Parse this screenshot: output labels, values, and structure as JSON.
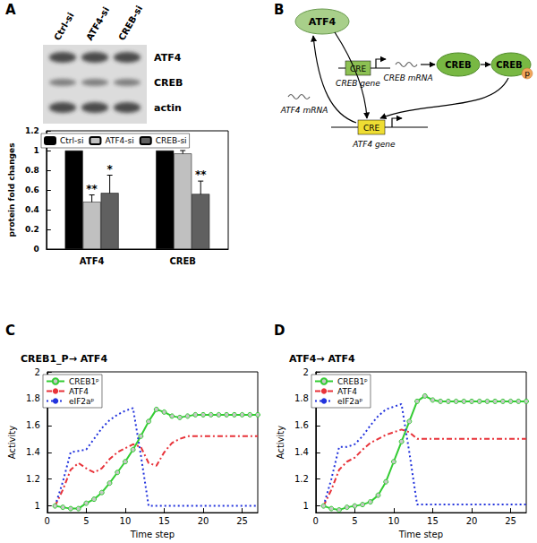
{
  "panel_labels": [
    "A",
    "B",
    "C",
    "D"
  ],
  "blot": {
    "lanes": [
      "Ctrl-si",
      "ATF4-si",
      "CREB-si"
    ],
    "rows": [
      "ATF4",
      "CREB",
      "actin"
    ]
  },
  "diagram": {
    "atf4_protein": "ATF4",
    "creb_gene": {
      "element": "CRE",
      "label": "CREB gene"
    },
    "creb_mrna": "CREB mRNA",
    "creb_protein": "CREB",
    "creb_phospho": {
      "label": "CREB",
      "mark": "p"
    },
    "atf4_gene": {
      "element": "CRE",
      "label": "ATF4 gene"
    },
    "atf4_mrna": "ATF4 mRNA"
  },
  "chart_data": [
    {
      "type": "bar",
      "categories": [
        "ATF4",
        "CREB"
      ],
      "ylabel": "protein fold changes",
      "ylim": [
        0,
        1.2
      ],
      "yticks": [
        0,
        0.2,
        0.4,
        0.6,
        0.8,
        1,
        1.2
      ],
      "grid": false,
      "legend": "upper left",
      "series": [
        {
          "name": "Ctrl-si",
          "color": "#000000",
          "values": [
            1,
            1
          ],
          "errors": [
            0,
            0
          ],
          "annotations": [
            null,
            null
          ]
        },
        {
          "name": "ATF4-si",
          "color": "#c0c0c0",
          "values": [
            0.48,
            0.97
          ],
          "errors": [
            0.07,
            0.03
          ],
          "annotations": [
            "**",
            null
          ]
        },
        {
          "name": "CREB-si",
          "color": "#606060",
          "values": [
            0.57,
            0.56
          ],
          "errors": [
            0.18,
            0.13
          ],
          "annotations": [
            "*",
            "**"
          ]
        }
      ]
    },
    {
      "type": "line",
      "title": "CREB1_P→ ATF4",
      "xlabel": "Time step",
      "ylabel": "Activity",
      "x": [
        1,
        2,
        3,
        4,
        5,
        6,
        7,
        8,
        9,
        10,
        11,
        12,
        13,
        14,
        15,
        16,
        17,
        18,
        19,
        20,
        21,
        22,
        23,
        24,
        25,
        26,
        27
      ],
      "xlim": [
        0,
        27
      ],
      "xticks": [
        0,
        5,
        10,
        15,
        20,
        25
      ],
      "ylim": [
        0.95,
        2
      ],
      "yticks": [
        1,
        1.2,
        1.4,
        1.6,
        1.8,
        2
      ],
      "grid": false,
      "legend": "upper left",
      "series": [
        {
          "name": "CREB1ᵖ",
          "color": "#33cc33",
          "marker": "circle",
          "line_style": "solid",
          "values": [
            1.0,
            0.99,
            0.98,
            0.98,
            1.02,
            1.05,
            1.1,
            1.17,
            1.25,
            1.33,
            1.42,
            1.52,
            1.63,
            1.72,
            1.7,
            1.67,
            1.66,
            1.67,
            1.68,
            1.68,
            1.68,
            1.68,
            1.68,
            1.68,
            1.68,
            1.68,
            1.68
          ]
        },
        {
          "name": "ATF4",
          "color": "#e8333a",
          "line_style": "dashdot",
          "values": [
            1.0,
            1.12,
            1.27,
            1.32,
            1.28,
            1.25,
            1.28,
            1.35,
            1.4,
            1.43,
            1.46,
            1.44,
            1.32,
            1.3,
            1.4,
            1.47,
            1.5,
            1.52,
            1.52,
            1.52,
            1.52,
            1.52,
            1.52,
            1.52,
            1.52,
            1.52,
            1.52
          ]
        },
        {
          "name": "eIF2aᵖ",
          "color": "#2233dd",
          "line_style": "dotted",
          "values": [
            1.0,
            1.18,
            1.4,
            1.41,
            1.42,
            1.5,
            1.58,
            1.64,
            1.68,
            1.71,
            1.73,
            1.38,
            1.0,
            1.0,
            1.0,
            1.0,
            1.0,
            1.0,
            1.0,
            1.0,
            1.0,
            1.0,
            1.0,
            1.0,
            1.0,
            1.0,
            1.0
          ]
        }
      ]
    },
    {
      "type": "line",
      "title": "ATF4→ ATF4",
      "xlabel": "Time step",
      "ylabel": "Activity",
      "x": [
        1,
        2,
        3,
        4,
        5,
        6,
        7,
        8,
        9,
        10,
        11,
        12,
        13,
        14,
        15,
        16,
        17,
        18,
        19,
        20,
        21,
        22,
        23,
        24,
        25,
        26,
        27
      ],
      "xlim": [
        0,
        27
      ],
      "xticks": [
        0,
        5,
        10,
        15,
        20,
        25
      ],
      "ylim": [
        0.95,
        2
      ],
      "yticks": [
        1,
        1.2,
        1.4,
        1.6,
        1.8,
        2
      ],
      "grid": false,
      "legend": "upper left",
      "series": [
        {
          "name": "CREB1ᵖ",
          "color": "#33cc33",
          "marker": "circle",
          "line_style": "solid",
          "values": [
            1.0,
            0.98,
            0.97,
            0.99,
            1.0,
            1.01,
            1.03,
            1.08,
            1.18,
            1.33,
            1.48,
            1.63,
            1.78,
            1.82,
            1.79,
            1.78,
            1.78,
            1.78,
            1.78,
            1.78,
            1.78,
            1.78,
            1.78,
            1.78,
            1.78,
            1.78,
            1.78
          ]
        },
        {
          "name": "ATF4",
          "color": "#e8333a",
          "line_style": "dashdot",
          "values": [
            1.0,
            1.12,
            1.27,
            1.33,
            1.36,
            1.42,
            1.47,
            1.5,
            1.53,
            1.55,
            1.57,
            1.55,
            1.5,
            1.5,
            1.5,
            1.5,
            1.5,
            1.5,
            1.5,
            1.5,
            1.5,
            1.5,
            1.5,
            1.5,
            1.5,
            1.5,
            1.5
          ]
        },
        {
          "name": "eIF2aᵖ",
          "color": "#2233dd",
          "line_style": "dotted",
          "values": [
            1.0,
            1.2,
            1.44,
            1.44,
            1.46,
            1.52,
            1.6,
            1.67,
            1.72,
            1.74,
            1.76,
            1.4,
            1.01,
            1.01,
            1.01,
            1.01,
            1.01,
            1.01,
            1.01,
            1.01,
            1.01,
            1.01,
            1.01,
            1.01,
            1.01,
            1.01,
            1.01
          ]
        }
      ]
    }
  ]
}
